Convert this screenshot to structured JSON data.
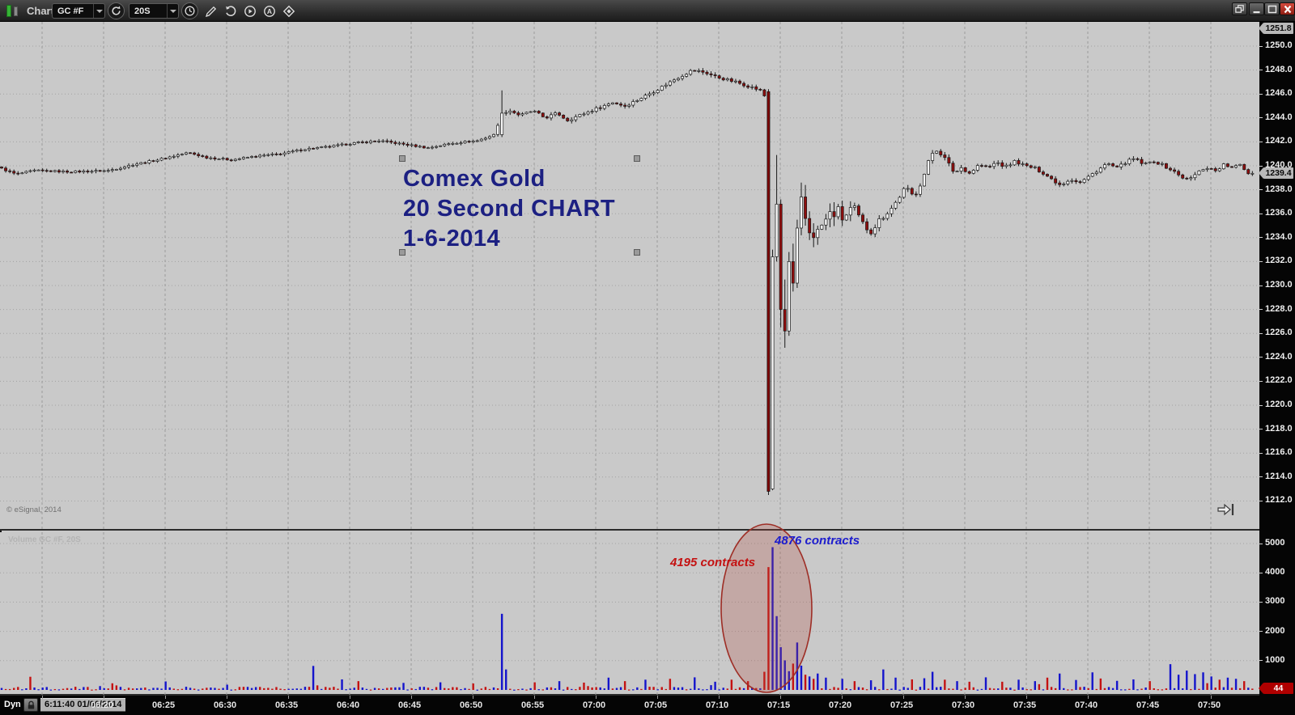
{
  "window": {
    "title": "Chart"
  },
  "toolbar": {
    "symbol": "GC #F",
    "interval": "20S"
  },
  "chart": {
    "copyright": "© eSignal, 2014",
    "ghost_label": "Volume  GC #F, 20S"
  },
  "statusbar": {
    "mode": "Dyn",
    "datetime": "6:11:40 01/06/2014"
  },
  "chart_data": {
    "type": "candlestick",
    "title": "Comex Gold 20 Second CHART 1-6-2014",
    "symbol": "GC #F",
    "interval_seconds": 20,
    "session_date": "01/06/2014",
    "chart_start_time": "6:11:40",
    "bar_count": 306,
    "colors": {
      "up": "#f7f7f7",
      "down": "#8e0d0d",
      "crash": "#7e0202",
      "vol_up": "#1414cc",
      "vol_down": "#c41212",
      "grid": "#9c9c9c",
      "annotation_navy": "#1c2082"
    },
    "price_axis": {
      "tick_labels": [
        "1250.0",
        "1248.0",
        "1246.0",
        "1244.0",
        "1242.0",
        "1240.0",
        "1238.0",
        "1236.0",
        "1234.0",
        "1232.0",
        "1230.0",
        "1228.0",
        "1226.0",
        "1224.0",
        "1222.0",
        "1220.0",
        "1218.0",
        "1216.0",
        "1214.0",
        "1212.0"
      ],
      "high_label": "1251.8",
      "last_label": "1239.4",
      "range": [
        1212.0,
        1251.8
      ]
    },
    "volume_axis": {
      "tick_labels": [
        "5000",
        "4000",
        "3000",
        "2000",
        "1000"
      ],
      "last_label": "44",
      "range": [
        0,
        5400
      ]
    },
    "time_axis": {
      "labels": [
        "06:20",
        "06:25",
        "06:30",
        "06:35",
        "06:40",
        "06:45",
        "06:50",
        "06:55",
        "07:00",
        "07:05",
        "07:10",
        "07:15",
        "07:20",
        "07:25",
        "07:30",
        "07:35",
        "07:40",
        "07:45",
        "07:50"
      ]
    },
    "price_path_waypoints": [
      [
        0,
        1239.9
      ],
      [
        1.5,
        1239.3
      ],
      [
        3,
        1239.6
      ],
      [
        6,
        1239.5
      ],
      [
        9,
        1239.6
      ],
      [
        11,
        1240.1
      ],
      [
        13,
        1240.5
      ],
      [
        15.5,
        1241.1
      ],
      [
        17,
        1240.7
      ],
      [
        19,
        1240.5
      ],
      [
        21,
        1240.8
      ],
      [
        23,
        1241.0
      ],
      [
        25,
        1241.4
      ],
      [
        27,
        1241.6
      ],
      [
        29,
        1241.9
      ],
      [
        31,
        1242.1
      ],
      [
        33,
        1241.8
      ],
      [
        35,
        1241.5
      ],
      [
        37,
        1241.9
      ],
      [
        39,
        1242.1
      ],
      [
        40.4,
        1242.6
      ],
      [
        41,
        1244.5
      ],
      [
        41.7,
        1244.6
      ],
      [
        42.5,
        1244.2
      ],
      [
        43.5,
        1244.6
      ],
      [
        44.5,
        1244.0
      ],
      [
        45.5,
        1244.4
      ],
      [
        46.3,
        1243.8
      ],
      [
        47.5,
        1244.3
      ],
      [
        49,
        1244.9
      ],
      [
        50,
        1245.3
      ],
      [
        51,
        1245.0
      ],
      [
        52,
        1245.5
      ],
      [
        53.5,
        1246.3
      ],
      [
        55,
        1247.2
      ],
      [
        56.5,
        1248.0
      ],
      [
        57.5,
        1247.8
      ],
      [
        58.5,
        1247.4
      ],
      [
        60,
        1247.0
      ],
      [
        61.5,
        1246.5
      ],
      [
        62.2,
        1246.2
      ],
      [
        66.6,
        1234.6
      ],
      [
        67.3,
        1235.3
      ],
      [
        68,
        1236.2
      ],
      [
        68.8,
        1235.6
      ],
      [
        69.5,
        1236.5
      ],
      [
        70.3,
        1235.1
      ],
      [
        71,
        1234.6
      ],
      [
        71.8,
        1235.6
      ],
      [
        72.8,
        1236.6
      ],
      [
        73.8,
        1238.2
      ],
      [
        74.5,
        1237.4
      ],
      [
        75.2,
        1238.9
      ],
      [
        75.9,
        1241.0
      ],
      [
        76.4,
        1241.4
      ],
      [
        77,
        1240.6
      ],
      [
        77.8,
        1239.4
      ],
      [
        78.4,
        1239.9
      ],
      [
        79,
        1239.4
      ],
      [
        79.8,
        1240.1
      ],
      [
        80.5,
        1239.8
      ],
      [
        81.2,
        1240.3
      ],
      [
        82,
        1239.9
      ],
      [
        82.7,
        1240.4
      ],
      [
        83.5,
        1240.0
      ],
      [
        84.3,
        1239.8
      ],
      [
        85,
        1239.4
      ],
      [
        85.8,
        1238.8
      ],
      [
        86.4,
        1238.4
      ],
      [
        87.2,
        1238.9
      ],
      [
        88,
        1238.6
      ],
      [
        88.7,
        1239.1
      ],
      [
        89.5,
        1239.7
      ],
      [
        90.2,
        1240.2
      ],
      [
        91,
        1239.8
      ],
      [
        91.7,
        1240.3
      ],
      [
        92.4,
        1240.6
      ],
      [
        93.2,
        1240.1
      ],
      [
        94,
        1240.4
      ],
      [
        94.8,
        1240.0
      ],
      [
        95.5,
        1239.6
      ],
      [
        96.2,
        1239.1
      ],
      [
        96.8,
        1238.8
      ],
      [
        97.5,
        1239.4
      ],
      [
        98.2,
        1239.9
      ],
      [
        99,
        1239.6
      ],
      [
        99.7,
        1240.1
      ],
      [
        100.4,
        1239.8
      ],
      [
        101,
        1240.1
      ],
      [
        101.67,
        1239.4
      ]
    ],
    "special_candles": [
      [
        122,
        1242.6,
        1246.3,
        1242.4,
        1244.4
      ],
      [
        187,
        1246.2,
        1246.4,
        1212.5,
        1212.8
      ],
      [
        188,
        1213.0,
        1233.0,
        1212.9,
        1232.4
      ],
      [
        189,
        1232.4,
        1240.9,
        1232.0,
        1236.8
      ],
      [
        190,
        1236.8,
        1237.2,
        1226.5,
        1228.0
      ],
      [
        191,
        1228.0,
        1230.5,
        1224.8,
        1226.2
      ],
      [
        192,
        1226.2,
        1232.8,
        1225.8,
        1232.0
      ],
      [
        193,
        1232.0,
        1233.5,
        1229.5,
        1230.2
      ],
      [
        194,
        1230.2,
        1235.5,
        1229.8,
        1234.8
      ],
      [
        195,
        1234.8,
        1238.6,
        1234.2,
        1237.4
      ],
      [
        196,
        1237.4,
        1238.4,
        1235.0,
        1235.6
      ],
      [
        197,
        1235.6,
        1236.2,
        1233.8,
        1234.4
      ],
      [
        198,
        1234.4,
        1235.2,
        1233.2,
        1234.0
      ],
      [
        199,
        1234.0,
        1235.0,
        1233.4,
        1234.7
      ]
    ],
    "volume_spikes": [
      [
        7,
        450,
        "d"
      ],
      [
        40,
        290,
        "u"
      ],
      [
        55,
        180,
        "u"
      ],
      [
        76,
        820,
        "u"
      ],
      [
        83,
        360,
        "u"
      ],
      [
        87,
        300,
        "d"
      ],
      [
        98,
        240,
        "u"
      ],
      [
        107,
        260,
        "u"
      ],
      [
        115,
        220,
        "d"
      ],
      [
        122,
        2600,
        "u"
      ],
      [
        123,
        700,
        "u"
      ],
      [
        130,
        260,
        "d"
      ],
      [
        136,
        300,
        "u"
      ],
      [
        142,
        250,
        "d"
      ],
      [
        148,
        420,
        "u"
      ],
      [
        152,
        300,
        "d"
      ],
      [
        157,
        350,
        "u"
      ],
      [
        163,
        380,
        "d"
      ],
      [
        169,
        430,
        "u"
      ],
      [
        174,
        280,
        "u"
      ],
      [
        178,
        350,
        "d"
      ],
      [
        182,
        300,
        "d"
      ],
      [
        186,
        620,
        "d"
      ],
      [
        187,
        4195,
        "d"
      ],
      [
        188,
        4876,
        "u"
      ],
      [
        189,
        2520,
        "u"
      ],
      [
        190,
        1460,
        "u"
      ],
      [
        191,
        1010,
        "u"
      ],
      [
        192,
        640,
        "u"
      ],
      [
        193,
        900,
        "d"
      ],
      [
        194,
        1620,
        "u"
      ],
      [
        195,
        830,
        "u"
      ],
      [
        196,
        520,
        "d"
      ],
      [
        197,
        460,
        "u"
      ],
      [
        198,
        380,
        "d"
      ],
      [
        199,
        560,
        "u"
      ],
      [
        201,
        420,
        "u"
      ],
      [
        205,
        380,
        "u"
      ],
      [
        208,
        300,
        "d"
      ],
      [
        212,
        330,
        "u"
      ],
      [
        215,
        700,
        "u"
      ],
      [
        218,
        420,
        "u"
      ],
      [
        222,
        360,
        "d"
      ],
      [
        225,
        400,
        "u"
      ],
      [
        227,
        620,
        "u"
      ],
      [
        230,
        350,
        "d"
      ],
      [
        233,
        300,
        "u"
      ],
      [
        236,
        280,
        "d"
      ],
      [
        240,
        430,
        "u"
      ],
      [
        244,
        280,
        "d"
      ],
      [
        248,
        350,
        "u"
      ],
      [
        252,
        300,
        "u"
      ],
      [
        255,
        420,
        "d"
      ],
      [
        258,
        560,
        "u"
      ],
      [
        262,
        340,
        "u"
      ],
      [
        266,
        600,
        "u"
      ],
      [
        268,
        390,
        "d"
      ],
      [
        272,
        310,
        "u"
      ],
      [
        276,
        360,
        "u"
      ],
      [
        280,
        300,
        "d"
      ],
      [
        285,
        880,
        "u"
      ],
      [
        287,
        520,
        "u"
      ],
      [
        289,
        660,
        "u"
      ],
      [
        291,
        540,
        "u"
      ],
      [
        293,
        600,
        "u"
      ],
      [
        295,
        460,
        "u"
      ],
      [
        297,
        350,
        "d"
      ],
      [
        299,
        420,
        "u"
      ],
      [
        301,
        380,
        "u"
      ],
      [
        303,
        300,
        "d"
      ],
      [
        305,
        44,
        "d"
      ]
    ],
    "annotations": {
      "text_box": {
        "lines": [
          "Comex Gold",
          "20 Second CHART",
          "1-6-2014"
        ]
      },
      "ellipse": {
        "center_time": "07:14",
        "note": "volume spike circled"
      },
      "labels": [
        {
          "text": "4195 contracts",
          "color": "#c41212"
        },
        {
          "text": "4876 contracts",
          "color": "#1c1ccd"
        }
      ]
    }
  }
}
